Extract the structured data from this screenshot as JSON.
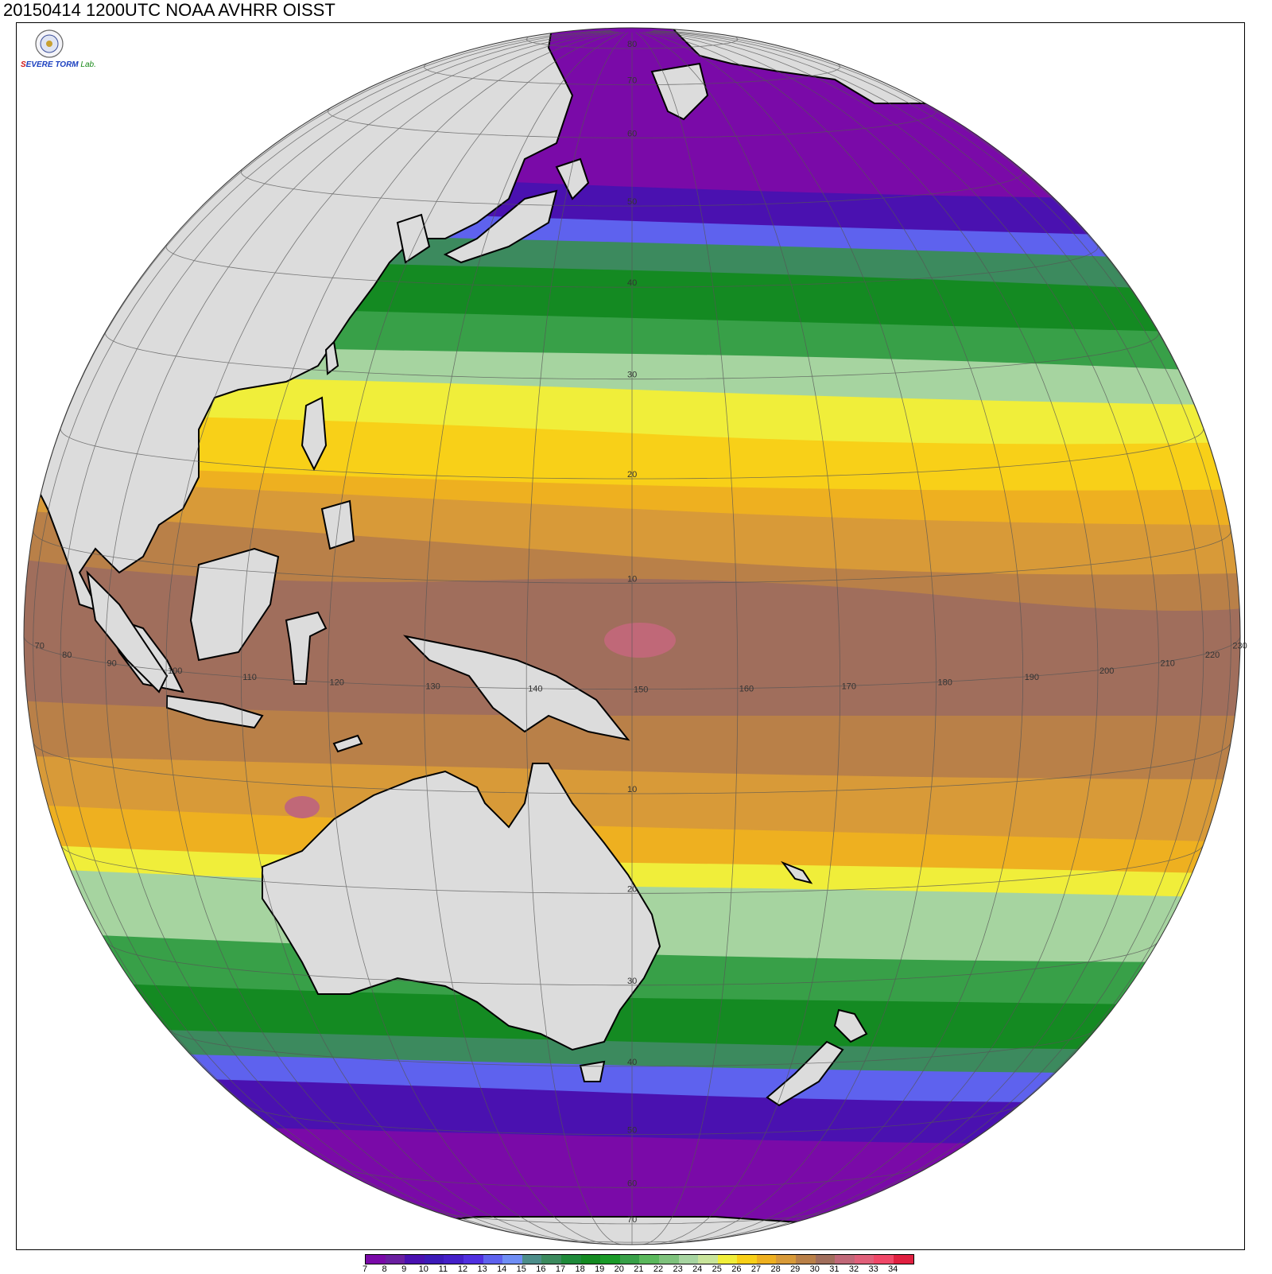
{
  "title": "20150414 1200UTC NOAA AVHRR OISST",
  "logo": {
    "text_s": "S",
    "text_evere": "EVERE",
    "text_storm": "TORM",
    "text_lab": "Lab."
  },
  "colors": {
    "land": "#dcdcdc",
    "coast": "#000000",
    "grid": "#555555"
  },
  "colorbar": {
    "labels": [
      "7",
      "8",
      "9",
      "10",
      "11",
      "12",
      "13",
      "14",
      "15",
      "16",
      "17",
      "18",
      "19",
      "20",
      "21",
      "22",
      "23",
      "24",
      "25",
      "26",
      "27",
      "28",
      "29",
      "30",
      "31",
      "32",
      "33",
      "34"
    ],
    "colors": [
      "#7a0aa8",
      "#6a1fa0",
      "#4a11b0",
      "#3c1ab8",
      "#4420c8",
      "#5030e0",
      "#5e62ee",
      "#6f8ef5",
      "#4d8e8a",
      "#3c8a5e",
      "#1f8a3a",
      "#148a22",
      "#1a9a28",
      "#38a048",
      "#5ab85c",
      "#7ec27c",
      "#a6d4a0",
      "#c8e49a",
      "#f0ee3a",
      "#f8d018",
      "#eeb020",
      "#d89a38",
      "#b98048",
      "#a06e5c",
      "#c06878",
      "#e0607a",
      "#f04868",
      "#e02040"
    ]
  },
  "map_labels": {
    "lon": [
      "70",
      "80",
      "90",
      "100",
      "110",
      "120",
      "130",
      "140",
      "150",
      "160",
      "170",
      "180",
      "190",
      "200",
      "210",
      "220",
      "230"
    ],
    "lat_north": [
      "10",
      "20",
      "30",
      "40",
      "50",
      "60",
      "70",
      "80"
    ],
    "lat_south": [
      "10",
      "20",
      "30",
      "40",
      "50",
      "60",
      "70"
    ]
  }
}
